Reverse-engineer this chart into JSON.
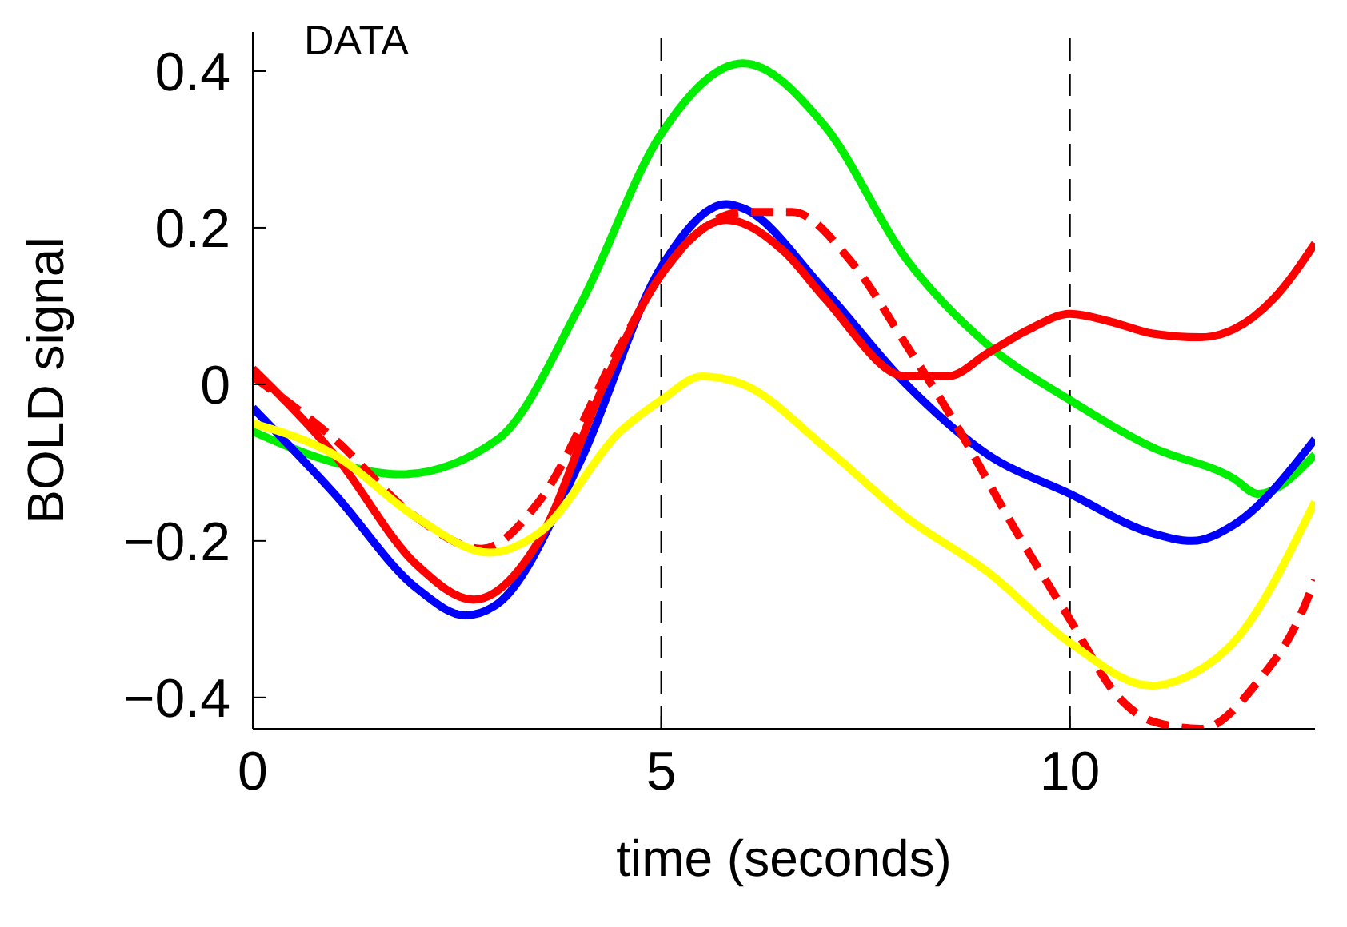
{
  "chart_data": {
    "type": "line",
    "xlabel": "time (seconds)",
    "ylabel": "BOLD signal",
    "annotations": [
      "DATA"
    ],
    "xlim": [
      0,
      13
    ],
    "ylim": [
      -0.44,
      0.45
    ],
    "xticks": [
      0,
      5,
      10
    ],
    "yticks": [
      {
        "value": -0.4,
        "label": "−0.4"
      },
      {
        "value": -0.2,
        "label": "−0.2"
      },
      0,
      0.2,
      0.4
    ],
    "grid": false,
    "legend": false,
    "marker": "none",
    "ref_lines": [
      {
        "axis": "x",
        "value": 5,
        "color": "#000000",
        "line_style": "dashed"
      },
      {
        "axis": "x",
        "value": 10,
        "color": "#000000",
        "line_style": "dashed"
      }
    ],
    "series": [
      {
        "color": "#00ee00",
        "line_style": "solid",
        "x": [
          0,
          1,
          1.8,
          3,
          4,
          5,
          6,
          7,
          8,
          9,
          10,
          11,
          12,
          12.3,
          13
        ],
        "values": [
          -0.06,
          -0.1,
          -0.115,
          -0.07,
          0.1,
          0.32,
          0.41,
          0.33,
          0.16,
          0.05,
          -0.02,
          -0.08,
          -0.12,
          -0.14,
          -0.09
        ]
      },
      {
        "color": "#0000ff",
        "line_style": "solid",
        "x": [
          0,
          1,
          2,
          2.6,
          3,
          4,
          5,
          5.8,
          6,
          7,
          8,
          9,
          10,
          11,
          11.5,
          12,
          13
        ],
        "values": [
          -0.03,
          -0.14,
          -0.26,
          -0.295,
          -0.28,
          -0.1,
          0.15,
          0.23,
          0.225,
          0.12,
          0,
          -0.09,
          -0.14,
          -0.19,
          -0.2,
          -0.18,
          -0.07
        ]
      },
      {
        "color": "#ff0000",
        "line_style": "solid",
        "x": [
          0,
          1,
          2,
          2.7,
          3.5,
          4.3,
          5,
          5.8,
          6.5,
          7,
          8,
          8.5,
          9,
          9.5,
          10,
          10.5,
          11,
          11.6,
          12,
          12.5,
          13
        ],
        "values": [
          0.02,
          -0.09,
          -0.23,
          -0.275,
          -0.2,
          0,
          0.14,
          0.21,
          0.17,
          0.11,
          0.01,
          0.01,
          0.04,
          0.07,
          0.09,
          0.08,
          0.065,
          0.06,
          0.07,
          0.11,
          0.18
        ]
      },
      {
        "color": "#ff0000",
        "line_style": "dashed",
        "x": [
          0,
          1,
          2,
          2.8,
          3.5,
          4.5,
          5,
          6,
          6.6,
          7.3,
          8,
          8.6,
          9.3,
          10,
          10.6,
          11,
          11.6,
          12.3,
          12.8,
          13
        ],
        "values": [
          0.01,
          -0.07,
          -0.17,
          -0.21,
          -0.15,
          0.05,
          0.14,
          0.22,
          0.22,
          0.16,
          0.05,
          -0.05,
          -0.18,
          -0.3,
          -0.4,
          -0.43,
          -0.44,
          -0.38,
          -0.3,
          -0.25
        ]
      },
      {
        "color": "#ffff00",
        "line_style": "solid",
        "x": [
          0,
          1,
          2,
          2.9,
          3.5,
          4.5,
          5,
          5.5,
          6,
          7,
          8,
          9,
          10,
          11,
          11.5,
          12,
          13
        ],
        "values": [
          -0.05,
          -0.09,
          -0.17,
          -0.215,
          -0.19,
          -0.06,
          -0.02,
          0.01,
          0,
          -0.08,
          -0.17,
          -0.24,
          -0.33,
          -0.385,
          -0.37,
          -0.33,
          -0.15
        ]
      }
    ]
  }
}
